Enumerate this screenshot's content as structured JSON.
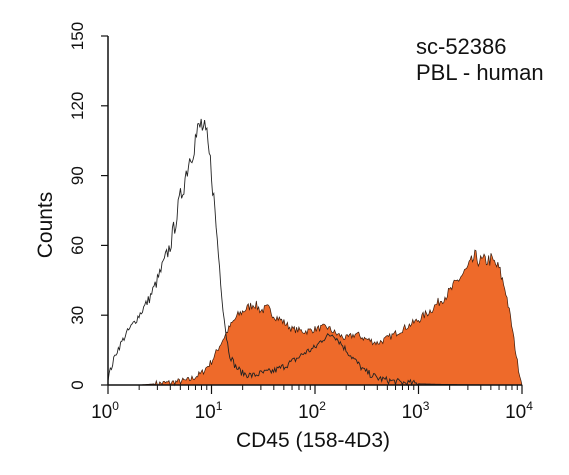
{
  "chart_data": {
    "type": "area",
    "xlabel": "CD45 (158-4D3)",
    "ylabel": "Counts",
    "xscale": "log",
    "xlim": [
      1,
      10000
    ],
    "ylim": [
      0,
      150
    ],
    "x_ticks": [
      {
        "value": 1,
        "base": "10",
        "exp": "0"
      },
      {
        "value": 10,
        "base": "10",
        "exp": "1"
      },
      {
        "value": 100,
        "base": "10",
        "exp": "2"
      },
      {
        "value": 1000,
        "base": "10",
        "exp": "3"
      },
      {
        "value": 10000,
        "base": "10",
        "exp": "4"
      }
    ],
    "y_ticks": [
      0,
      30,
      60,
      90,
      120,
      150
    ],
    "annotations": [
      "sc-52386",
      "PBL - human"
    ],
    "grid": false,
    "colors": {
      "stained": "#ee6a2a",
      "control": "#222222",
      "axis": "#111111"
    },
    "series": [
      {
        "role": "control",
        "style": "outline",
        "x": [
          1,
          1.2,
          1.5,
          2,
          2.5,
          3,
          4,
          5,
          6,
          7,
          8,
          9,
          10,
          11,
          12,
          13,
          14,
          15,
          17,
          20,
          25,
          30,
          40,
          50,
          60,
          70,
          80,
          100,
          120,
          150,
          170,
          200,
          250,
          300,
          400,
          500,
          700,
          1000,
          1500,
          2000,
          3000,
          5000,
          10000
        ],
        "y": [
          3,
          14,
          22,
          30,
          37,
          45,
          60,
          80,
          96,
          106,
          112,
          105,
          92,
          70,
          50,
          32,
          20,
          13,
          8,
          5,
          4,
          5,
          6,
          8,
          10,
          12,
          14,
          16,
          20,
          22,
          19,
          15,
          10,
          6,
          3,
          2,
          1,
          0.5,
          0.3,
          0.2,
          0.1,
          0,
          0
        ]
      },
      {
        "role": "stained",
        "style": "filled",
        "x": [
          1,
          2,
          4,
          6,
          8,
          10,
          12,
          15,
          18,
          22,
          26,
          30,
          35,
          40,
          50,
          60,
          80,
          100,
          130,
          160,
          200,
          250,
          300,
          400,
          500,
          700,
          1000,
          1300,
          1600,
          2000,
          2500,
          3000,
          3500,
          4000,
          5000,
          6000,
          7000,
          8000,
          9000,
          10000
        ],
        "y": [
          0,
          0,
          1,
          2,
          5,
          10,
          17,
          25,
          30,
          33,
          35,
          32,
          33,
          30,
          27,
          24,
          23,
          24,
          25,
          22,
          20,
          22,
          20,
          18,
          20,
          24,
          28,
          32,
          36,
          40,
          46,
          50,
          55,
          53,
          54,
          50,
          40,
          25,
          10,
          0
        ]
      }
    ]
  }
}
